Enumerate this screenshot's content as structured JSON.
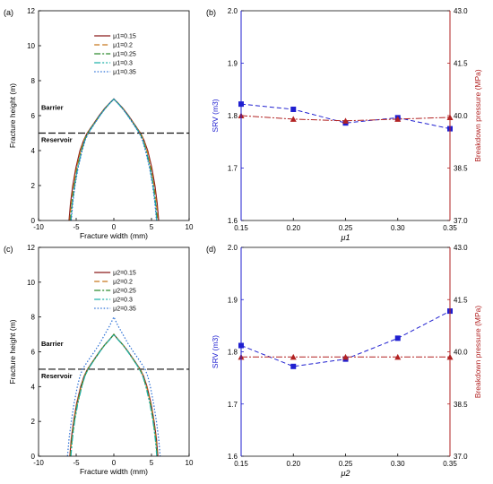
{
  "chart_data": [
    {
      "panel": "(a)",
      "type": "line",
      "xlabel": "Fracture width (mm)",
      "ylabel": "Fracture height (m)",
      "xlim": [
        -10,
        10
      ],
      "ylim": [
        0,
        12
      ],
      "xticks": [
        "-10",
        "-5",
        "0",
        "5",
        "10"
      ],
      "yticks": [
        "0",
        "2",
        "4",
        "6",
        "8",
        "10",
        "12"
      ],
      "grid": false,
      "legend_position": "upper-right",
      "annotations": [
        "Barrier",
        "Reservoir"
      ],
      "reservoir_line_y": 5,
      "y": [
        0,
        1,
        2,
        3,
        4,
        4.6,
        5.0,
        5.5,
        6.0,
        6.4,
        6.7,
        6.95
      ],
      "series": [
        {
          "name": "μ1=0.15",
          "color": "#8b1a1a",
          "dash": "",
          "halfwidth": [
            5.95,
            5.75,
            5.45,
            5.05,
            4.5,
            4.0,
            3.55,
            2.75,
            1.95,
            1.25,
            0.6,
            0.0
          ]
        },
        {
          "name": "μ1=0.2",
          "color": "#c8781e",
          "dash": "6 3",
          "halfwidth": [
            5.85,
            5.65,
            5.35,
            4.95,
            4.4,
            3.95,
            3.5,
            2.7,
            1.9,
            1.2,
            0.58,
            0.0
          ]
        },
        {
          "name": "μ1=0.25",
          "color": "#2e8b2e",
          "dash": "7 2 2 2",
          "halfwidth": [
            5.75,
            5.55,
            5.25,
            4.85,
            4.3,
            3.88,
            3.45,
            2.68,
            1.88,
            1.18,
            0.56,
            0.0
          ]
        },
        {
          "name": "μ1=0.3",
          "color": "#20b2aa",
          "dash": "7 2 2 2 2 2",
          "halfwidth": [
            5.7,
            5.5,
            5.2,
            4.8,
            4.25,
            3.83,
            3.4,
            2.65,
            1.86,
            1.16,
            0.55,
            0.0
          ]
        },
        {
          "name": "μ1=0.35",
          "color": "#2a6fd6",
          "dash": "1.5 2",
          "halfwidth": [
            5.65,
            5.45,
            5.15,
            4.75,
            4.2,
            3.8,
            3.38,
            2.62,
            1.84,
            1.15,
            0.54,
            0.0
          ]
        }
      ]
    },
    {
      "panel": "(b)",
      "type": "line",
      "xlabel": "μ1",
      "ylabel_left": "SRV (m3)",
      "ylabel_right": "Breakdown pressure (MPa)",
      "categories": [
        "0.15",
        "0.20",
        "0.25",
        "0.30",
        "0.35"
      ],
      "ylim_left": [
        1.6,
        2.0
      ],
      "yticks_left": [
        "1.6",
        "1.7",
        "1.8",
        "1.9",
        "2.0"
      ],
      "ylim_right": [
        37.0,
        43.0
      ],
      "yticks_right": [
        "37.0",
        "38.5",
        "40.0",
        "41.5",
        "43.0"
      ],
      "grid": false,
      "series": [
        {
          "name": "SRV",
          "axis": "left",
          "color": "#1f1fd0",
          "marker": "square",
          "values": [
            1.822,
            1.812,
            1.786,
            1.796,
            1.775
          ]
        },
        {
          "name": "Breakdown pressure",
          "axis": "right",
          "color": "#b22222",
          "marker": "triangle",
          "values": [
            40.0,
            39.9,
            39.85,
            39.9,
            39.95
          ]
        }
      ]
    },
    {
      "panel": "(c)",
      "type": "line",
      "xlabel": "Fracture width (mm)",
      "ylabel": "Fracture height (m)",
      "xlim": [
        -10,
        10
      ],
      "ylim": [
        0,
        12
      ],
      "xticks": [
        "-10",
        "-5",
        "0",
        "5",
        "10"
      ],
      "yticks": [
        "0",
        "2",
        "4",
        "6",
        "8",
        "10",
        "12"
      ],
      "grid": false,
      "legend_position": "upper-right",
      "annotations": [
        "Barrier",
        "Reservoir"
      ],
      "reservoir_line_y": 5,
      "series": [
        {
          "name": "μ2=0.15",
          "color": "#8b1a1a",
          "dash": "",
          "y": [
            0,
            1,
            2,
            3,
            4,
            4.6,
            5.0,
            5.5,
            6.0,
            6.4,
            6.7,
            7.0
          ],
          "halfwidth": [
            5.85,
            5.65,
            5.35,
            4.95,
            4.4,
            3.95,
            3.5,
            2.72,
            1.92,
            1.22,
            0.58,
            0.0
          ]
        },
        {
          "name": "μ2=0.2",
          "color": "#c8781e",
          "dash": "6 3",
          "y": [
            0,
            1,
            2,
            3,
            4,
            4.6,
            5.0,
            5.5,
            6.0,
            6.4,
            6.7,
            7.0
          ],
          "halfwidth": [
            5.8,
            5.6,
            5.3,
            4.9,
            4.35,
            3.9,
            3.46,
            2.69,
            1.9,
            1.2,
            0.57,
            0.0
          ]
        },
        {
          "name": "μ2=0.25",
          "color": "#2e8b2e",
          "dash": "7 2 2 2",
          "y": [
            0,
            1,
            2,
            3,
            4,
            4.6,
            5.0,
            5.5,
            6.0,
            6.4,
            6.7,
            7.0
          ],
          "halfwidth": [
            5.75,
            5.55,
            5.25,
            4.85,
            4.3,
            3.87,
            3.43,
            2.67,
            1.88,
            1.19,
            0.56,
            0.0
          ]
        },
        {
          "name": "μ2=0.3",
          "color": "#20b2aa",
          "dash": "7 2 2 2 2 2",
          "y": [
            0,
            1,
            2,
            3,
            4,
            4.6,
            5.0,
            5.5,
            6.0,
            6.4,
            6.7,
            7.0
          ],
          "halfwidth": [
            5.7,
            5.5,
            5.2,
            4.8,
            4.25,
            3.84,
            3.4,
            2.65,
            1.87,
            1.18,
            0.55,
            0.0
          ]
        },
        {
          "name": "μ2=0.35",
          "color": "#2a6fd6",
          "dash": "1.5 2",
          "y": [
            0,
            1,
            2,
            3,
            4,
            4.6,
            5.0,
            5.5,
            6.0,
            6.5,
            7.0,
            7.5,
            8.0
          ],
          "halfwidth": [
            6.15,
            5.95,
            5.65,
            5.3,
            4.85,
            4.5,
            4.15,
            3.4,
            2.6,
            1.85,
            1.2,
            0.55,
            0.0
          ]
        }
      ]
    },
    {
      "panel": "(d)",
      "type": "line",
      "xlabel": "μ2",
      "ylabel_left": "SRV (m3)",
      "ylabel_right": "Breakdown pressure (MPa)",
      "categories": [
        "0.15",
        "0.20",
        "0.25",
        "0.30",
        "0.35"
      ],
      "ylim_left": [
        1.6,
        2.0
      ],
      "yticks_left": [
        "1.6",
        "1.7",
        "1.8",
        "1.9",
        "2.0"
      ],
      "ylim_right": [
        37.0,
        43.0
      ],
      "yticks_right": [
        "37.0",
        "38.5",
        "40.0",
        "41.5",
        "43.0"
      ],
      "grid": false,
      "series": [
        {
          "name": "SRV",
          "axis": "left",
          "color": "#1f1fd0",
          "marker": "square",
          "values": [
            1.812,
            1.772,
            1.786,
            1.826,
            1.878
          ]
        },
        {
          "name": "Breakdown pressure",
          "axis": "right",
          "color": "#b22222",
          "marker": "triangle",
          "values": [
            39.85,
            39.85,
            39.85,
            39.85,
            39.85
          ]
        }
      ]
    }
  ]
}
